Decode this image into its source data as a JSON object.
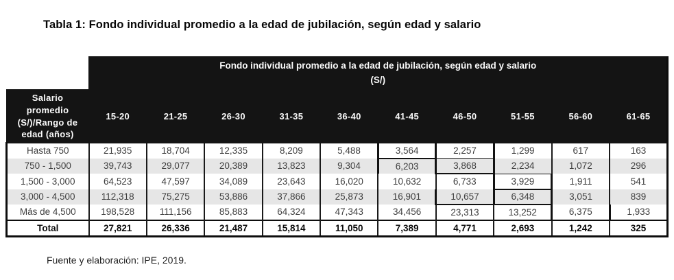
{
  "page": {
    "title": "Tabla 1: Fondo individual promedio a la edad de jubilación, según edad y salario",
    "source": "Fuente y elaboración: IPE, 2019."
  },
  "table": {
    "group_header": {
      "line1": "Fondo individual promedio a la edad de jubilación, según edad y salario",
      "line2": "(S/)"
    },
    "corner_header_lines": [
      "Salario",
      "promedio",
      "(S/)/Rango de",
      "edad (años)"
    ],
    "age_columns": [
      "15-20",
      "21-25",
      "26-30",
      "31-35",
      "36-40",
      "41-45",
      "46-50",
      "51-55",
      "56-60",
      "61-65"
    ],
    "rows": [
      {
        "label": "Hasta 750",
        "values": [
          "21,935",
          "18,704",
          "12,335",
          "8,209",
          "5,488",
          "3,564",
          "2,257",
          "1,299",
          "617",
          "163"
        ]
      },
      {
        "label": "750 - 1,500",
        "values": [
          "39,743",
          "29,077",
          "20,389",
          "13,823",
          "9,304",
          "6,203",
          "3,868",
          "2,234",
          "1,072",
          "296"
        ]
      },
      {
        "label": "1,500 - 3,000",
        "values": [
          "64,523",
          "47,597",
          "34,089",
          "23,643",
          "16,020",
          "10,632",
          "6,733",
          "3,929",
          "1,911",
          "541"
        ]
      },
      {
        "label": "3,000 - 4,500",
        "values": [
          "112,318",
          "75,275",
          "53,886",
          "37,866",
          "25,873",
          "16,901",
          "10,657",
          "6,348",
          "3,051",
          "839"
        ]
      },
      {
        "label": "Más de 4,500",
        "values": [
          "198,528",
          "111,156",
          "85,883",
          "64,324",
          "47,343",
          "34,456",
          "23,313",
          "13,252",
          "6,375",
          "1,933"
        ]
      }
    ],
    "total_row": {
      "label": "Total",
      "values": [
        "27,821",
        "26,336",
        "21,487",
        "15,814",
        "11,050",
        "7,389",
        "4,771",
        "2,693",
        "1,242",
        "325"
      ]
    }
  }
}
